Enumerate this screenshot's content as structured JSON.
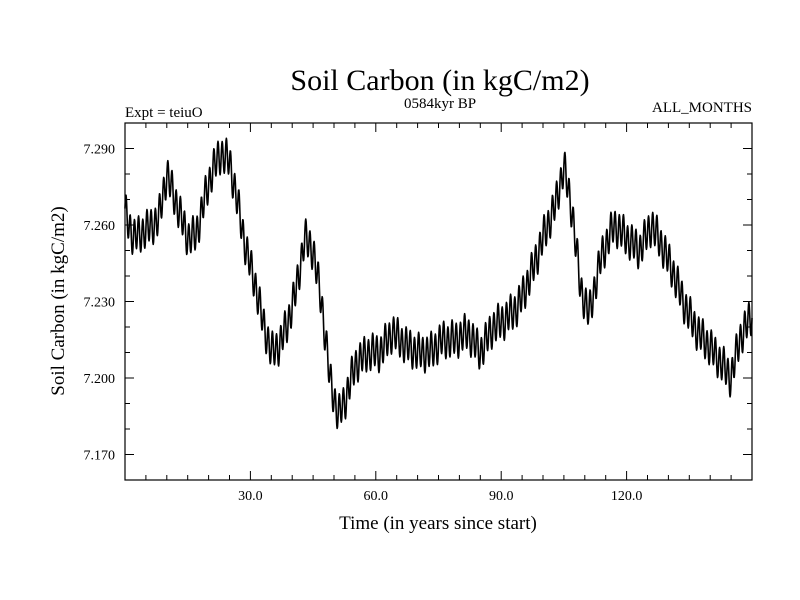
{
  "chart_data": {
    "type": "line",
    "title": "Soil Carbon (in kgC/m2)",
    "subtitle": "0584kyr BP",
    "experiment": "Expt = teiuO",
    "period": "ALL_MONTHS",
    "xlabel": "Time (in years since start)",
    "ylabel": "Soil Carbon (in kgC/m2)",
    "xlim": [
      0,
      150
    ],
    "ylim": [
      7.16,
      7.3
    ],
    "x_ticks": [
      30,
      60,
      90,
      120
    ],
    "x_tick_labels": [
      "30.0",
      "60.0",
      "90.0",
      "120.0"
    ],
    "y_ticks": [
      7.17,
      7.2,
      7.23,
      7.26,
      7.29
    ],
    "y_tick_labels": [
      "7.170",
      "7.200",
      "7.230",
      "7.260",
      "7.290"
    ],
    "series": [
      {
        "name": "Soil Carbon",
        "seasonal_amplitude": 0.0065,
        "x": [
          0,
          2,
          5,
          8,
          10,
          12,
          15,
          17,
          19,
          21,
          23,
          25,
          27,
          29,
          31,
          33,
          35,
          37,
          39,
          41,
          43,
          45,
          47,
          49,
          51,
          53,
          55,
          58,
          61,
          64,
          67,
          70,
          73,
          76,
          79,
          82,
          85,
          88,
          91,
          94,
          97,
          100,
          103,
          105,
          107,
          109,
          111,
          114,
          117,
          120,
          123,
          126,
          129,
          131,
          134,
          137,
          140,
          143,
          145,
          147,
          150
        ],
        "y": [
          7.265,
          7.255,
          7.258,
          7.262,
          7.28,
          7.27,
          7.255,
          7.256,
          7.27,
          7.282,
          7.288,
          7.285,
          7.268,
          7.25,
          7.238,
          7.222,
          7.21,
          7.213,
          7.222,
          7.235,
          7.255,
          7.25,
          7.23,
          7.2,
          7.185,
          7.193,
          7.205,
          7.21,
          7.21,
          7.218,
          7.213,
          7.21,
          7.21,
          7.215,
          7.215,
          7.218,
          7.21,
          7.22,
          7.223,
          7.228,
          7.24,
          7.255,
          7.268,
          7.283,
          7.265,
          7.235,
          7.225,
          7.248,
          7.26,
          7.255,
          7.25,
          7.26,
          7.25,
          7.242,
          7.228,
          7.218,
          7.212,
          7.205,
          7.2,
          7.215,
          7.225
        ]
      }
    ]
  }
}
